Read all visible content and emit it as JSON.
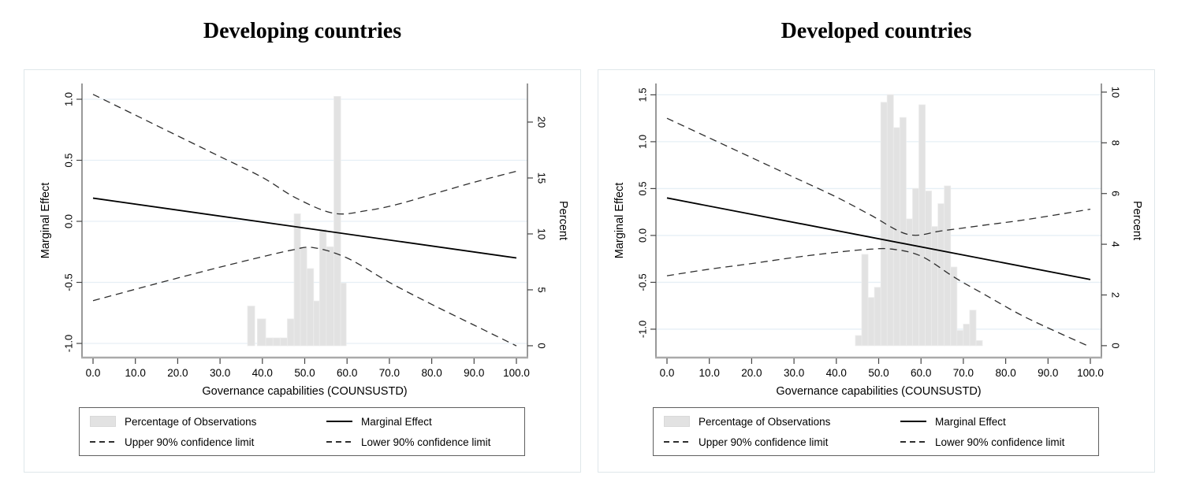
{
  "colors": {
    "bar_fill": "#e2e2e2",
    "bar_edge": "#ececec",
    "gridline": "#e6eff5",
    "x_axis": "#aaaaaa",
    "y_axis": "#555555",
    "tick": "#444444",
    "solid_line": "#000000",
    "ci_line": "#2e2e2e",
    "text": "#000000",
    "figure_border": "#dfe7ea"
  },
  "chart_data": [
    {
      "type": "histogram+line",
      "title": "Developing countries",
      "xlabel": "Governance capabilities (COUNSUSTD)",
      "ylabel_left": "Marginal Effect",
      "ylabel_right": "Percent",
      "x_ticks": [
        0,
        10,
        20,
        30,
        40,
        50,
        60,
        70,
        80,
        90,
        100
      ],
      "x_tick_labels": [
        "0.0",
        "10.0",
        "20.0",
        "30.0",
        "40.0",
        "50.0",
        "60.0",
        "70.0",
        "80.0",
        "90.0",
        "100.0"
      ],
      "me_ticks": [
        -1.0,
        -0.5,
        0.0,
        0.5,
        1.0
      ],
      "me_tick_labels": [
        "-1.0",
        "-0.5",
        "0.0",
        "0.5",
        "1.0"
      ],
      "me_ylim": [
        -1.116,
        1.129
      ],
      "pct_ticks": [
        0,
        5,
        10,
        15,
        20
      ],
      "pct_tick_labels": [
        "0",
        "5",
        "10",
        "15",
        "20"
      ],
      "pct_ylim": [
        -1.06,
        23.45
      ],
      "marginal_effect": {
        "x": [
          0,
          100
        ],
        "y": [
          0.19,
          -0.3
        ]
      },
      "upper_ci": {
        "x": [
          0,
          10,
          20,
          30,
          40,
          48,
          57,
          65,
          72,
          80,
          90,
          100
        ],
        "y": [
          1.04,
          0.87,
          0.7,
          0.53,
          0.36,
          0.19,
          0.065,
          0.09,
          0.14,
          0.22,
          0.32,
          0.41
        ]
      },
      "lower_ci": {
        "x": [
          0,
          15,
          30,
          40,
          47,
          52,
          60,
          70,
          80,
          90,
          100
        ],
        "y": [
          -0.65,
          -0.51,
          -0.375,
          -0.29,
          -0.235,
          -0.215,
          -0.3,
          -0.5,
          -0.68,
          -0.85,
          -1.02
        ]
      },
      "histogram": {
        "bars": [
          {
            "x": 36.5,
            "w": 1.7,
            "h": 3.55
          },
          {
            "x": 38.8,
            "w": 2.0,
            "h": 2.4
          },
          {
            "x": 40.8,
            "w": 1.7,
            "h": 0.7
          },
          {
            "x": 42.5,
            "w": 1.7,
            "h": 0.7
          },
          {
            "x": 44.2,
            "w": 1.7,
            "h": 0.7
          },
          {
            "x": 45.9,
            "w": 1.6,
            "h": 2.4
          },
          {
            "x": 47.5,
            "w": 1.5,
            "h": 11.8
          },
          {
            "x": 49.0,
            "w": 1.5,
            "h": 8.8
          },
          {
            "x": 50.5,
            "w": 1.6,
            "h": 6.9
          },
          {
            "x": 52.1,
            "w": 1.4,
            "h": 4.0
          },
          {
            "x": 53.5,
            "w": 1.6,
            "h": 10.4
          },
          {
            "x": 55.1,
            "w": 1.8,
            "h": 8.85
          },
          {
            "x": 56.9,
            "w": 1.6,
            "h": 22.3
          },
          {
            "x": 58.5,
            "w": 1.3,
            "h": 5.6
          }
        ]
      },
      "legend": {
        "items": [
          {
            "label": "Percentage of Observations",
            "marker": "swatch"
          },
          {
            "label": "Marginal Effect",
            "marker": "solid"
          },
          {
            "label": "Upper 90% confidence limit",
            "marker": "dash"
          },
          {
            "label": "Lower 90% confidence limit",
            "marker": "dash"
          }
        ]
      }
    },
    {
      "type": "histogram+line",
      "title": "Developed countries",
      "xlabel": "Governance capabilities (COUNSUSTD)",
      "ylabel_left": "Marginal Effect",
      "ylabel_right": "Percent",
      "x_ticks": [
        0,
        10,
        20,
        30,
        40,
        50,
        60,
        70,
        80,
        90,
        100
      ],
      "x_tick_labels": [
        "0.0",
        "10.0",
        "20.0",
        "30.0",
        "40.0",
        "50.0",
        "60.0",
        "70.0",
        "80.0",
        "90.0",
        "100.0"
      ],
      "me_ticks": [
        -1.0,
        -0.5,
        0.0,
        0.5,
        1.0,
        1.5
      ],
      "me_tick_labels": [
        "-1.0",
        "-0.5",
        "0.0",
        "0.5",
        "1.0",
        "1.5"
      ],
      "me_ylim": [
        -1.303,
        1.621
      ],
      "pct_ticks": [
        0,
        2,
        4,
        6,
        8,
        10
      ],
      "pct_tick_labels": [
        "0",
        "2",
        "4",
        "6",
        "8",
        "10"
      ],
      "pct_ylim": [
        -0.47,
        10.34
      ],
      "marginal_effect": {
        "x": [
          0,
          100
        ],
        "y": [
          0.4,
          -0.47
        ]
      },
      "upper_ci": {
        "x": [
          0,
          10,
          20,
          30,
          40,
          48,
          57,
          65,
          75,
          85,
          100
        ],
        "y": [
          1.25,
          1.04,
          0.83,
          0.62,
          0.41,
          0.22,
          0.01,
          0.05,
          0.11,
          0.17,
          0.28
        ]
      },
      "lower_ci": {
        "x": [
          0,
          10,
          20,
          30,
          40,
          47,
          53,
          60,
          68,
          75,
          85,
          100
        ],
        "y": [
          -0.43,
          -0.36,
          -0.3,
          -0.235,
          -0.18,
          -0.15,
          -0.145,
          -0.22,
          -0.45,
          -0.63,
          -0.88,
          -1.19
        ]
      },
      "histogram": {
        "bars": [
          {
            "x": 44.5,
            "w": 1.5,
            "h": 0.4
          },
          {
            "x": 46.0,
            "w": 1.5,
            "h": 3.6
          },
          {
            "x": 47.5,
            "w": 1.5,
            "h": 1.9
          },
          {
            "x": 49.0,
            "w": 1.5,
            "h": 2.3
          },
          {
            "x": 50.5,
            "w": 1.5,
            "h": 9.6
          },
          {
            "x": 52.0,
            "w": 1.5,
            "h": 9.9
          },
          {
            "x": 53.5,
            "w": 1.5,
            "h": 8.6
          },
          {
            "x": 55.0,
            "w": 1.5,
            "h": 9.0
          },
          {
            "x": 56.5,
            "w": 1.5,
            "h": 5.0
          },
          {
            "x": 58.0,
            "w": 1.5,
            "h": 6.2
          },
          {
            "x": 59.5,
            "w": 1.5,
            "h": 9.5
          },
          {
            "x": 61.0,
            "w": 1.5,
            "h": 6.1
          },
          {
            "x": 62.5,
            "w": 1.5,
            "h": 4.7
          },
          {
            "x": 64.0,
            "w": 1.5,
            "h": 5.6
          },
          {
            "x": 65.5,
            "w": 1.5,
            "h": 6.3
          },
          {
            "x": 67.0,
            "w": 1.5,
            "h": 3.1
          },
          {
            "x": 68.5,
            "w": 1.5,
            "h": 0.6
          },
          {
            "x": 70.0,
            "w": 1.5,
            "h": 0.85
          },
          {
            "x": 71.5,
            "w": 1.5,
            "h": 1.4
          },
          {
            "x": 73.0,
            "w": 1.5,
            "h": 0.2
          }
        ]
      },
      "legend": {
        "items": [
          {
            "label": "Percentage of Observations",
            "marker": "swatch"
          },
          {
            "label": "Marginal Effect",
            "marker": "solid"
          },
          {
            "label": "Upper 90% confidence limit",
            "marker": "dash"
          },
          {
            "label": "Lower 90% confidence limit",
            "marker": "dash"
          }
        ]
      }
    }
  ]
}
